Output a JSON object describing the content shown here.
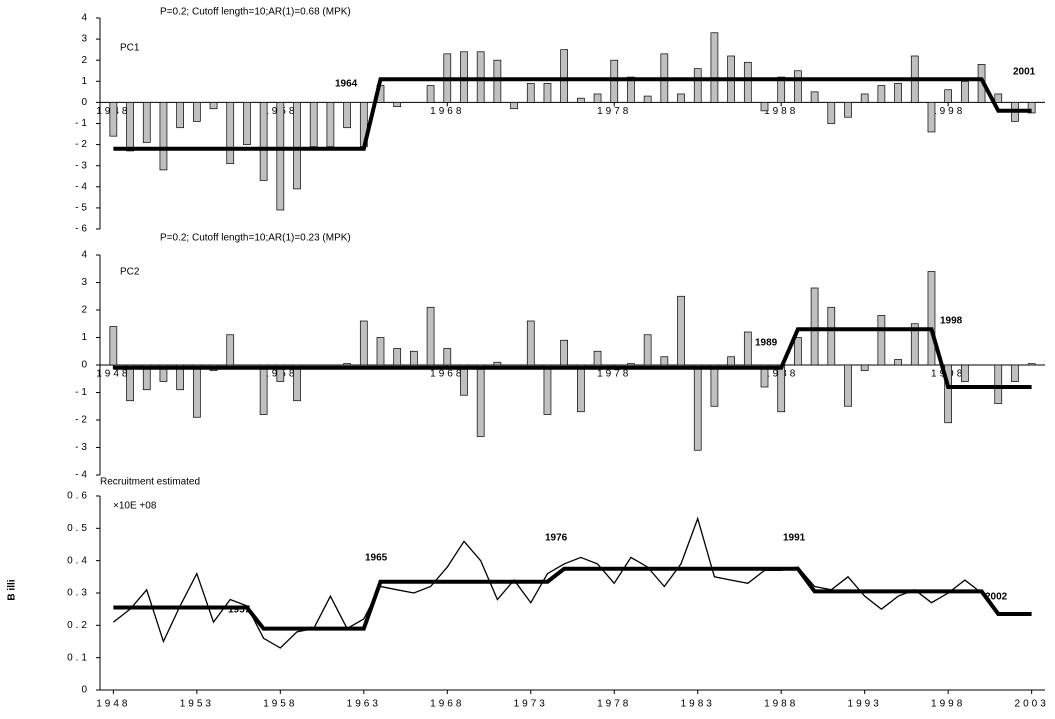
{
  "chart_data": [
    {
      "type": "bar",
      "title": "P=0.2; Cutoff length=10;AR(1)=0.68 (MPK)",
      "annotations": [
        "PC1",
        "1964",
        "2001"
      ],
      "x": [
        1948,
        1949,
        1950,
        1951,
        1952,
        1953,
        1954,
        1955,
        1956,
        1957,
        1958,
        1959,
        1960,
        1961,
        1962,
        1963,
        1964,
        1965,
        1966,
        1967,
        1968,
        1969,
        1970,
        1971,
        1972,
        1973,
        1974,
        1975,
        1976,
        1977,
        1978,
        1979,
        1980,
        1981,
        1982,
        1983,
        1984,
        1985,
        1986,
        1987,
        1988,
        1989,
        1990,
        1991,
        1992,
        1993,
        1994,
        1995,
        1996,
        1997,
        1998,
        1999,
        2000,
        2001,
        2002,
        2003
      ],
      "values": [
        -1.6,
        -2.3,
        -1.9,
        -3.2,
        -1.2,
        -0.9,
        -0.3,
        -2.9,
        -2.0,
        -3.7,
        -5.1,
        -4.1,
        -2.1,
        -2.1,
        -1.2,
        -2.1,
        0.8,
        -0.2,
        0.0,
        0.8,
        2.3,
        2.4,
        2.4,
        2.0,
        -0.3,
        0.9,
        0.9,
        2.5,
        0.2,
        0.4,
        2.0,
        1.2,
        0.3,
        2.3,
        0.4,
        1.6,
        3.3,
        2.2,
        1.9,
        -0.4,
        1.2,
        1.5,
        0.5,
        -1.0,
        -0.7,
        0.4,
        0.8,
        0.9,
        2.2,
        -1.4,
        0.6,
        1.0,
        1.8,
        0.4,
        -0.9,
        -0.5
      ],
      "regime": [
        -2.2,
        -2.2,
        -2.2,
        -2.2,
        -2.2,
        -2.2,
        -2.2,
        -2.2,
        -2.2,
        -2.2,
        -2.2,
        -2.2,
        -2.2,
        -2.2,
        -2.2,
        -2.2,
        1.1,
        1.1,
        1.1,
        1.1,
        1.1,
        1.1,
        1.1,
        1.1,
        1.1,
        1.1,
        1.1,
        1.1,
        1.1,
        1.1,
        1.1,
        1.1,
        1.1,
        1.1,
        1.1,
        1.1,
        1.1,
        1.1,
        1.1,
        1.1,
        1.1,
        1.1,
        1.1,
        1.1,
        1.1,
        1.1,
        1.1,
        1.1,
        1.1,
        1.1,
        1.1,
        1.1,
        1.1,
        -0.4,
        -0.4,
        -0.4
      ],
      "color": "#c0c0c0",
      "line_color": "#000000",
      "xlim": [
        1947.2,
        2003.8
      ],
      "xticks": [
        1948,
        1958,
        1968,
        1978,
        1988,
        1998
      ],
      "ylim": [
        -6,
        4
      ],
      "yticks": [
        -6,
        -5,
        -4,
        -3,
        -2,
        -1,
        0,
        1,
        2,
        3,
        4
      ]
    },
    {
      "type": "bar",
      "title": "P=0.2; Cutoff length=10;AR(1)=0.23 (MPK)",
      "annotations": [
        "PC2",
        "1989",
        "1998"
      ],
      "x": [
        1948,
        1949,
        1950,
        1951,
        1952,
        1953,
        1954,
        1955,
        1956,
        1957,
        1958,
        1959,
        1960,
        1961,
        1962,
        1963,
        1964,
        1965,
        1966,
        1967,
        1968,
        1969,
        1970,
        1971,
        1972,
        1973,
        1974,
        1975,
        1976,
        1977,
        1978,
        1979,
        1980,
        1981,
        1982,
        1983,
        1984,
        1985,
        1986,
        1987,
        1988,
        1989,
        1990,
        1991,
        1992,
        1993,
        1994,
        1995,
        1996,
        1997,
        1998,
        1999,
        2000,
        2001,
        2002,
        2003
      ],
      "values": [
        1.4,
        -1.3,
        -0.9,
        -0.6,
        -0.9,
        -1.9,
        -0.2,
        1.1,
        0,
        -1.8,
        -0.6,
        -1.3,
        0,
        0,
        0.05,
        1.6,
        1.0,
        0.6,
        0.5,
        2.1,
        0.6,
        -1.1,
        -2.6,
        0.1,
        0,
        1.6,
        -1.8,
        0.9,
        -1.7,
        0.5,
        0,
        0.05,
        1.1,
        0.3,
        2.5,
        -3.1,
        -1.5,
        0.3,
        1.2,
        -0.8,
        -1.7,
        1.0,
        2.8,
        2.1,
        -1.5,
        -0.2,
        1.8,
        0.2,
        1.5,
        3.4,
        -2.1,
        -0.6,
        0,
        -1.4,
        -0.6,
        0.05
      ],
      "regime": [
        -0.1,
        -0.1,
        -0.1,
        -0.1,
        -0.1,
        -0.1,
        -0.1,
        -0.1,
        -0.1,
        -0.1,
        -0.1,
        -0.1,
        -0.1,
        -0.1,
        -0.1,
        -0.1,
        -0.1,
        -0.1,
        -0.1,
        -0.1,
        -0.1,
        -0.1,
        -0.1,
        -0.1,
        -0.1,
        -0.1,
        -0.1,
        -0.1,
        -0.1,
        -0.1,
        -0.1,
        -0.1,
        -0.1,
        -0.1,
        -0.1,
        -0.1,
        -0.1,
        -0.1,
        -0.1,
        -0.1,
        -0.1,
        1.3,
        1.3,
        1.3,
        1.3,
        1.3,
        1.3,
        1.3,
        1.3,
        1.3,
        -0.8,
        -0.8,
        -0.8,
        -0.8,
        -0.8,
        -0.8
      ],
      "color": "#c0c0c0",
      "line_color": "#000000",
      "xlim": [
        1947.2,
        2003.8
      ],
      "xticks": [
        1948,
        1958,
        1968,
        1978,
        1988,
        1998
      ],
      "ylim": [
        -4,
        4
      ],
      "yticks": [
        -4,
        -3,
        -2,
        -1,
        0,
        1,
        2,
        3,
        4
      ]
    },
    {
      "type": "line",
      "title": "Recruitment estimated",
      "unit": "×10E +08",
      "ylabel": "B illi",
      "annotations": [
        "1957",
        "1965",
        "1976",
        "1991",
        "2002"
      ],
      "x": [
        1948,
        1949,
        1950,
        1951,
        1952,
        1953,
        1954,
        1955,
        1956,
        1957,
        1958,
        1959,
        1960,
        1961,
        1962,
        1963,
        1964,
        1965,
        1966,
        1967,
        1968,
        1969,
        1970,
        1971,
        1972,
        1973,
        1974,
        1975,
        1976,
        1977,
        1978,
        1979,
        1980,
        1981,
        1982,
        1983,
        1984,
        1985,
        1986,
        1987,
        1988,
        1989,
        1990,
        1991,
        1992,
        1993,
        1994,
        1995,
        1996,
        1997,
        1998,
        1999,
        2000,
        2001,
        2002,
        2003
      ],
      "values": [
        0.21,
        0.25,
        0.31,
        0.15,
        0.26,
        0.36,
        0.21,
        0.28,
        0.26,
        0.16,
        0.13,
        0.18,
        0.19,
        0.29,
        0.19,
        0.22,
        0.32,
        0.31,
        0.3,
        0.32,
        0.38,
        0.46,
        0.4,
        0.28,
        0.34,
        0.27,
        0.36,
        0.39,
        0.41,
        0.39,
        0.33,
        0.41,
        0.38,
        0.32,
        0.39,
        0.53,
        0.35,
        0.34,
        0.33,
        0.37,
        0.37,
        0.38,
        0.32,
        0.31,
        0.35,
        0.29,
        0.25,
        0.29,
        0.31,
        0.27,
        0.3,
        0.34,
        0.3,
        null,
        null,
        null
      ],
      "regime": [
        0.255,
        0.255,
        0.255,
        0.255,
        0.255,
        0.255,
        0.255,
        0.255,
        0.255,
        0.19,
        0.19,
        0.19,
        0.19,
        0.19,
        0.19,
        0.19,
        0.335,
        0.335,
        0.335,
        0.335,
        0.335,
        0.335,
        0.335,
        0.335,
        0.335,
        0.335,
        0.335,
        0.375,
        0.375,
        0.375,
        0.375,
        0.375,
        0.375,
        0.375,
        0.375,
        0.375,
        0.375,
        0.375,
        0.375,
        0.375,
        0.375,
        0.375,
        0.305,
        0.305,
        0.305,
        0.305,
        0.305,
        0.305,
        0.305,
        0.305,
        0.305,
        0.305,
        0.305,
        0.235,
        0.235,
        0.235
      ],
      "line_color": "#000000",
      "xlim": [
        1947.2,
        2003.8
      ],
      "xticks": [
        1948,
        1953,
        1958,
        1963,
        1968,
        1973,
        1978,
        1983,
        1988,
        1993,
        1998,
        2003
      ],
      "ylim": [
        0,
        0.6
      ],
      "yticks": [
        0,
        0.1,
        0.2,
        0.3,
        0.4,
        0.5,
        0.6
      ]
    }
  ]
}
